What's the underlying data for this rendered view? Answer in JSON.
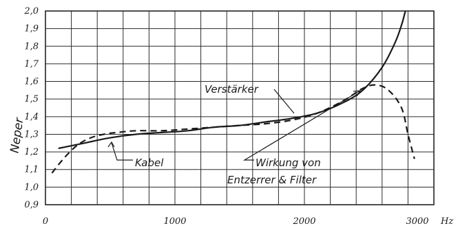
{
  "chart_data": {
    "type": "line",
    "title": "",
    "ylabel": "Neper",
    "xlabel": "",
    "x_unit": "Hz",
    "xlim": [
      0,
      3000
    ],
    "ylim": [
      0.9,
      2.0
    ],
    "x_ticks": [
      0,
      1000,
      2000,
      3000
    ],
    "x_tick_labels": [
      "0",
      "1000",
      "2000",
      "3000"
    ],
    "y_ticks": [
      0.9,
      1.0,
      1.1,
      1.2,
      1.3,
      1.4,
      1.5,
      1.6,
      1.7,
      1.8,
      1.9,
      2.0
    ],
    "y_tick_labels": [
      "0,9",
      "1,0",
      "1,1",
      "1,2",
      "1,3",
      "1,4",
      "1,5",
      "1,6",
      "1,7",
      "1,8",
      "1,9",
      "2,0"
    ],
    "grid": true,
    "series": [
      {
        "name": "Kabel",
        "style": "solid",
        "x": [
          100,
          300,
          500,
          700,
          900,
          1100,
          1300,
          1500,
          1700,
          1900,
          2100,
          2300,
          2450,
          2600,
          2700,
          2750,
          2780
        ],
        "y": [
          1.22,
          1.25,
          1.28,
          1.3,
          1.31,
          1.32,
          1.34,
          1.35,
          1.37,
          1.39,
          1.42,
          1.48,
          1.55,
          1.68,
          1.82,
          1.92,
          2.0
        ]
      },
      {
        "name": "Entzerrer & Filter",
        "style": "dashed",
        "x": [
          50,
          150,
          250,
          350,
          450,
          550,
          700,
          900,
          1100,
          1300,
          1500,
          1700,
          1900,
          2100,
          2300,
          2450,
          2550,
          2650,
          2750,
          2800,
          2850
        ],
        "y": [
          1.08,
          1.17,
          1.24,
          1.28,
          1.3,
          1.31,
          1.32,
          1.32,
          1.33,
          1.34,
          1.35,
          1.36,
          1.38,
          1.42,
          1.49,
          1.56,
          1.58,
          1.55,
          1.45,
          1.3,
          1.16
        ]
      }
    ],
    "annotations": [
      "Verstärker",
      "Kabel",
      "Wirkung von",
      "Entzerrer & Filter"
    ]
  }
}
